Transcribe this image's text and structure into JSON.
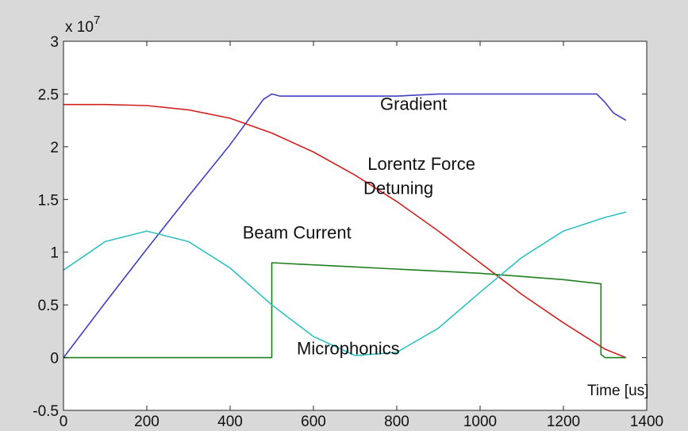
{
  "chart_data": {
    "type": "line",
    "title": "",
    "xlabel": "Time [us]",
    "ylabel": "",
    "y_multiplier": "x 10",
    "y_multiplier_exponent": "7",
    "xlim": [
      0,
      1400
    ],
    "ylim": [
      -0.5,
      3
    ],
    "xticks": [
      0,
      200,
      400,
      600,
      800,
      1000,
      1200,
      1400
    ],
    "yticks": [
      -0.5,
      0,
      0.5,
      1,
      1.5,
      2,
      2.5,
      3
    ],
    "xtick_labels": [
      "0",
      "200",
      "400",
      "600",
      "800",
      "1000",
      "1200",
      "1400"
    ],
    "ytick_labels": [
      "-0.5",
      "0",
      "0.5",
      "1",
      "1.5",
      "2",
      "2.5",
      "3"
    ],
    "grid": false,
    "legend": "none",
    "series": [
      {
        "name": "Gradient",
        "color": "#4040c0",
        "x": [
          0,
          100,
          200,
          300,
          400,
          480,
          500,
          520,
          600,
          800,
          900,
          1000,
          1100,
          1200,
          1280,
          1300,
          1320,
          1350
        ],
        "y": [
          0,
          0.52,
          1.03,
          1.53,
          2.02,
          2.45,
          2.5,
          2.48,
          2.48,
          2.48,
          2.5,
          2.5,
          2.5,
          2.5,
          2.5,
          2.42,
          2.32,
          2.25
        ]
      },
      {
        "name": "Lorentz Force Detuning",
        "color": "#d02020",
        "x": [
          0,
          100,
          200,
          300,
          400,
          500,
          600,
          700,
          800,
          900,
          1000,
          1100,
          1200,
          1300,
          1350
        ],
        "y": [
          2.4,
          2.4,
          2.39,
          2.35,
          2.27,
          2.13,
          1.95,
          1.73,
          1.48,
          1.2,
          0.9,
          0.6,
          0.33,
          0.08,
          0
        ]
      },
      {
        "name": "Beam Current",
        "color": "#208020",
        "x": [
          0,
          500,
          500,
          600,
          700,
          800,
          900,
          1000,
          1100,
          1200,
          1290,
          1290,
          1300,
          1350
        ],
        "y": [
          0,
          0,
          0.9,
          0.88,
          0.86,
          0.84,
          0.82,
          0.8,
          0.77,
          0.74,
          0.7,
          0.03,
          0,
          0
        ]
      },
      {
        "name": "Microphonics",
        "color": "#30c0c0",
        "x": [
          0,
          100,
          200,
          300,
          400,
          500,
          600,
          700,
          800,
          900,
          1000,
          1100,
          1200,
          1300,
          1350
        ],
        "y": [
          0.83,
          1.1,
          1.2,
          1.1,
          0.85,
          0.5,
          0.2,
          0.02,
          0.05,
          0.28,
          0.62,
          0.95,
          1.2,
          1.33,
          1.38
        ]
      }
    ],
    "annotations": [
      {
        "text": "Gradient",
        "x": 760,
        "y": 2.35
      },
      {
        "text": "Lorentz Force",
        "x": 730,
        "y": 1.78
      },
      {
        "text": "Detuning",
        "x": 720,
        "y": 1.55
      },
      {
        "text": "Beam Current",
        "x": 430,
        "y": 1.13
      },
      {
        "text": "Microphonics",
        "x": 560,
        "y": 0.03
      }
    ]
  }
}
